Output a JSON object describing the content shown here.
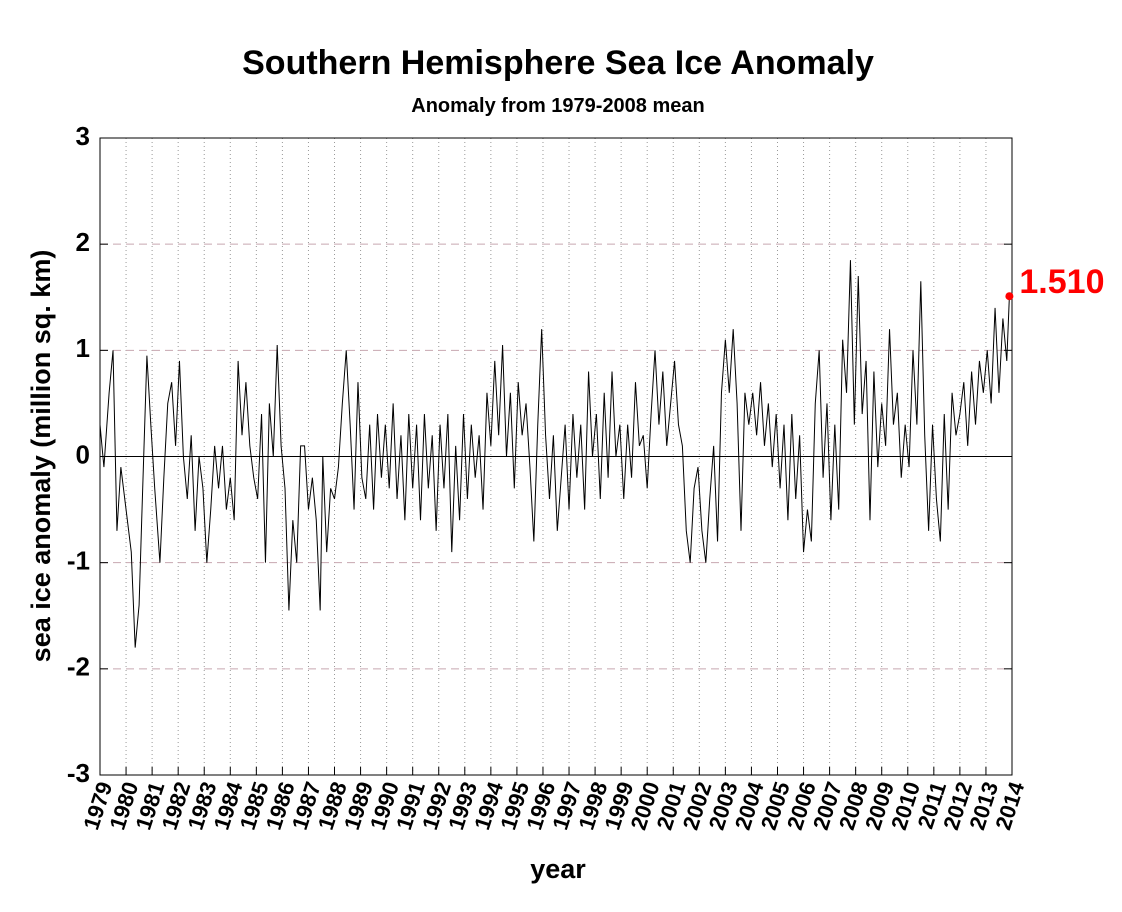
{
  "chart_data": {
    "type": "line",
    "title": "Southern Hemisphere Sea Ice Anomaly",
    "subtitle": "Anomaly from 1979-2008 mean",
    "ylabel": "sea ice anomaly (million sq. km)",
    "xlabel": "year",
    "xlim": [
      1979,
      2014
    ],
    "ylim": [
      -3,
      3
    ],
    "xticks": [
      1979,
      1980,
      1981,
      1982,
      1983,
      1984,
      1985,
      1986,
      1987,
      1988,
      1989,
      1990,
      1991,
      1992,
      1993,
      1994,
      1995,
      1996,
      1997,
      1998,
      1999,
      2000,
      2001,
      2002,
      2003,
      2004,
      2005,
      2006,
      2007,
      2008,
      2009,
      2010,
      2011,
      2012,
      2013,
      2014
    ],
    "yticks": [
      -3,
      -2,
      -1,
      0,
      1,
      2,
      3
    ],
    "grid": true,
    "zero_line": true,
    "color": "#000000",
    "x": [
      1979.0,
      1979.15,
      1979.35,
      1979.5,
      1979.65,
      1979.8,
      1980.0,
      1980.2,
      1980.35,
      1980.5,
      1980.6,
      1980.8,
      1980.95,
      1981.1,
      1981.3,
      1981.45,
      1981.6,
      1981.75,
      1981.9,
      1982.05,
      1982.2,
      1982.35,
      1982.5,
      1982.65,
      1982.8,
      1982.95,
      1983.1,
      1983.25,
      1983.4,
      1983.55,
      1983.7,
      1983.85,
      1984.0,
      1984.15,
      1984.3,
      1984.45,
      1984.6,
      1984.75,
      1984.9,
      1985.05,
      1985.2,
      1985.35,
      1985.5,
      1985.65,
      1985.8,
      1985.95,
      1986.1,
      1986.25,
      1986.4,
      1986.55,
      1986.7,
      1986.85,
      1987.0,
      1987.15,
      1987.3,
      1987.45,
      1987.55,
      1987.7,
      1987.85,
      1988.0,
      1988.15,
      1988.3,
      1988.45,
      1988.6,
      1988.75,
      1988.9,
      1989.05,
      1989.2,
      1989.35,
      1989.5,
      1989.65,
      1989.8,
      1989.95,
      1990.1,
      1990.25,
      1990.4,
      1990.55,
      1990.7,
      1990.85,
      1991.0,
      1991.15,
      1991.3,
      1991.45,
      1991.6,
      1991.75,
      1991.9,
      1992.05,
      1992.2,
      1992.35,
      1992.5,
      1992.65,
      1992.8,
      1992.95,
      1993.1,
      1993.25,
      1993.4,
      1993.55,
      1993.7,
      1993.85,
      1994.0,
      1994.15,
      1994.3,
      1994.45,
      1994.6,
      1994.75,
      1994.9,
      1995.05,
      1995.2,
      1995.35,
      1995.5,
      1995.65,
      1995.8,
      1995.95,
      1996.1,
      1996.25,
      1996.4,
      1996.55,
      1996.7,
      1996.85,
      1997.0,
      1997.15,
      1997.3,
      1997.45,
      1997.6,
      1997.75,
      1997.9,
      1998.05,
      1998.2,
      1998.35,
      1998.5,
      1998.65,
      1998.8,
      1998.95,
      1999.1,
      1999.25,
      1999.4,
      1999.55,
      1999.7,
      1999.85,
      2000.0,
      2000.15,
      2000.3,
      2000.45,
      2000.6,
      2000.75,
      2000.9,
      2001.05,
      2001.2,
      2001.35,
      2001.5,
      2001.65,
      2001.8,
      2001.95,
      2002.1,
      2002.25,
      2002.4,
      2002.55,
      2002.7,
      2002.85,
      2003.0,
      2003.15,
      2003.3,
      2003.45,
      2003.6,
      2003.75,
      2003.9,
      2004.05,
      2004.2,
      2004.35,
      2004.5,
      2004.65,
      2004.8,
      2004.95,
      2005.1,
      2005.25,
      2005.4,
      2005.55,
      2005.7,
      2005.85,
      2006.0,
      2006.15,
      2006.3,
      2006.45,
      2006.6,
      2006.75,
      2006.9,
      2007.05,
      2007.2,
      2007.35,
      2007.5,
      2007.65,
      2007.8,
      2007.95,
      2008.1,
      2008.25,
      2008.4,
      2008.55,
      2008.7,
      2008.85,
      2009.0,
      2009.15,
      2009.3,
      2009.45,
      2009.6,
      2009.75,
      2009.9,
      2010.05,
      2010.2,
      2010.35,
      2010.5,
      2010.65,
      2010.8,
      2010.95,
      2011.1,
      2011.25,
      2011.4,
      2011.55,
      2011.7,
      2011.85,
      2012.0,
      2012.15,
      2012.3,
      2012.45,
      2012.6,
      2012.75,
      2012.9,
      2013.05,
      2013.2,
      2013.35,
      2013.5,
      2013.65,
      2013.8,
      2013.9
    ],
    "values": [
      0.3,
      -0.1,
      0.6,
      1.0,
      -0.7,
      -0.1,
      -0.5,
      -0.9,
      -1.8,
      -1.4,
      -0.6,
      0.95,
      0.3,
      -0.3,
      -1.0,
      -0.2,
      0.5,
      0.7,
      0.1,
      0.9,
      0.0,
      -0.4,
      0.2,
      -0.7,
      0.0,
      -0.3,
      -1.0,
      -0.5,
      0.1,
      -0.3,
      0.1,
      -0.5,
      -0.2,
      -0.6,
      0.9,
      0.2,
      0.7,
      0.1,
      -0.2,
      -0.4,
      0.4,
      -1.0,
      0.5,
      0.0,
      1.05,
      0.1,
      -0.3,
      -1.45,
      -0.6,
      -1.0,
      0.1,
      0.1,
      -0.5,
      -0.2,
      -0.6,
      -1.45,
      0.0,
      -0.9,
      -0.3,
      -0.4,
      -0.1,
      0.5,
      1.0,
      0.3,
      -0.5,
      0.7,
      -0.2,
      -0.4,
      0.3,
      -0.5,
      0.4,
      -0.2,
      0.3,
      -0.3,
      0.5,
      -0.4,
      0.2,
      -0.6,
      0.4,
      -0.3,
      0.3,
      -0.6,
      0.4,
      -0.3,
      0.2,
      -0.7,
      0.3,
      -0.3,
      0.4,
      -0.9,
      0.1,
      -0.6,
      0.4,
      -0.4,
      0.3,
      -0.2,
      0.2,
      -0.5,
      0.6,
      0.1,
      0.9,
      0.2,
      1.05,
      0.0,
      0.6,
      -0.3,
      0.7,
      0.2,
      0.5,
      -0.1,
      -0.8,
      0.3,
      1.2,
      0.2,
      -0.4,
      0.2,
      -0.7,
      -0.2,
      0.3,
      -0.5,
      0.4,
      -0.2,
      0.3,
      -0.5,
      0.8,
      0.0,
      0.4,
      -0.4,
      0.6,
      -0.2,
      0.8,
      0.0,
      0.3,
      -0.4,
      0.3,
      -0.2,
      0.7,
      0.1,
      0.2,
      -0.3,
      0.4,
      1.0,
      0.3,
      0.8,
      0.1,
      0.5,
      0.9,
      0.3,
      0.1,
      -0.7,
      -1.0,
      -0.3,
      -0.1,
      -0.7,
      -1.0,
      -0.4,
      0.1,
      -0.8,
      0.6,
      1.1,
      0.6,
      1.2,
      0.5,
      -0.7,
      0.6,
      0.3,
      0.6,
      0.2,
      0.7,
      0.1,
      0.5,
      -0.1,
      0.4,
      -0.3,
      0.3,
      -0.6,
      0.4,
      -0.4,
      0.2,
      -0.9,
      -0.5,
      -0.8,
      0.5,
      1.0,
      -0.2,
      0.5,
      -0.6,
      0.3,
      -0.5,
      1.1,
      0.6,
      1.85,
      0.3,
      1.7,
      0.4,
      0.9,
      -0.6,
      0.8,
      -0.1,
      0.5,
      0.1,
      1.2,
      0.3,
      0.6,
      -0.2,
      0.3,
      -0.1,
      1.0,
      0.3,
      1.65,
      0.2,
      -0.7,
      0.3,
      -0.4,
      -0.8,
      0.4,
      -0.5,
      0.6,
      0.2,
      0.4,
      0.7,
      0.1,
      0.8,
      0.3,
      0.9,
      0.6,
      1.0,
      0.5,
      1.4,
      0.6,
      1.3,
      0.9,
      1.51
    ],
    "annotations": [
      {
        "x": 2013.9,
        "y": 1.51,
        "text": "1.510",
        "color": "#ff0000"
      }
    ]
  }
}
